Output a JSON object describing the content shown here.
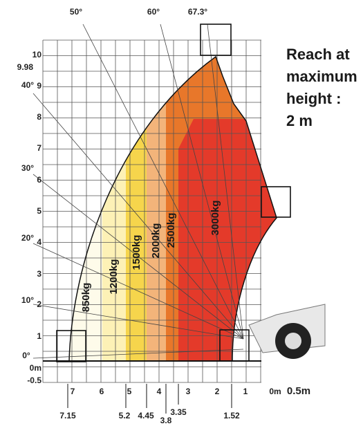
{
  "angles": [
    "50°",
    "60°",
    "67.3°",
    "40°",
    "30°",
    "20°",
    "10°",
    "0°"
  ],
  "y_labels": [
    "10",
    "9",
    "8",
    "7",
    "6",
    "5",
    "4",
    "3",
    "2",
    "1",
    "0m",
    "-0.5"
  ],
  "y_extra": "9.98",
  "x_labels": [
    "7",
    "6",
    "5",
    "4",
    "3",
    "2",
    "1",
    "0m",
    "0.5m"
  ],
  "x_extra": [
    "7.15",
    "5.2",
    "4.45",
    "3.8",
    "3.35",
    "1.52"
  ],
  "loads": [
    "850kg",
    "1200kg",
    "1500kg",
    "2000kg",
    "2500kg",
    "3000kg"
  ],
  "note": [
    "Reach at",
    "maximum",
    "height :",
    "2 m"
  ]
}
